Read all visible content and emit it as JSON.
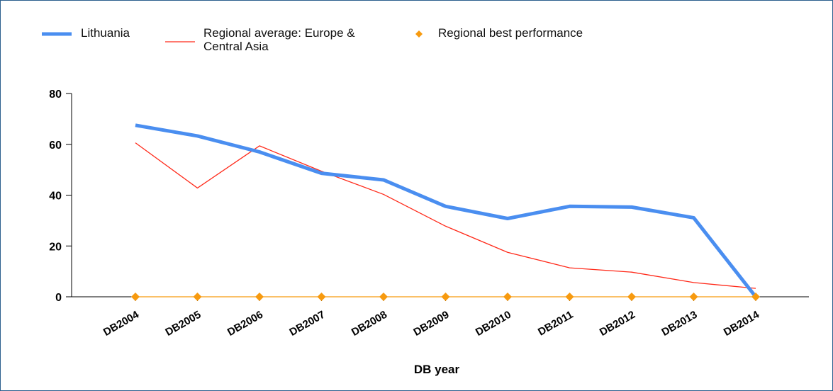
{
  "chart_data": {
    "type": "line",
    "x_label": "DB year",
    "categories": [
      "DB2004",
      "DB2005",
      "DB2006",
      "DB2007",
      "DB2008",
      "DB2009",
      "DB2010",
      "DB2011",
      "DB2012",
      "DB2013",
      "DB2014"
    ],
    "series": [
      {
        "name": "Lithuania",
        "color": "#4a8ef0",
        "line_width": 5,
        "values": [
          67.5,
          63.3,
          57,
          48.6,
          46,
          35.6,
          30.8,
          35.6,
          35.3,
          31.1,
          0
        ]
      },
      {
        "name": "Regional average: Europe & Central Asia",
        "color": "#ff2a1a",
        "line_width": 1.3,
        "values": [
          60.6,
          42.8,
          59.4,
          49.4,
          40.3,
          27.8,
          17.5,
          11.4,
          9.7,
          5.6,
          3.3
        ]
      },
      {
        "name": "Regional best performance",
        "color": "#f79a0f",
        "line_width": 1.3,
        "marker": "diamond",
        "values": [
          0,
          0,
          0,
          0,
          0,
          0,
          0,
          0,
          0,
          0,
          0
        ]
      }
    ],
    "ylim": [
      0,
      80
    ],
    "yticks": [
      0,
      20,
      40,
      60,
      80
    ]
  }
}
